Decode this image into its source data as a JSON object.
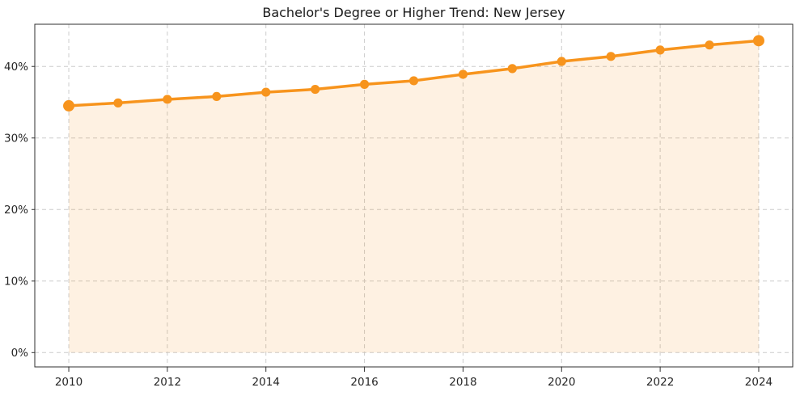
{
  "figure": {
    "title": "Bachelor's Degree or Higher Trend: New Jersey"
  },
  "chart_data": {
    "type": "line",
    "title": "Bachelor's Degree or Higher Trend: New Jersey",
    "x": [
      2010,
      2011,
      2012,
      2013,
      2014,
      2015,
      2016,
      2017,
      2018,
      2019,
      2020,
      2021,
      2022,
      2023,
      2024
    ],
    "values": [
      34.5,
      34.9,
      35.4,
      35.8,
      36.4,
      36.8,
      37.5,
      38.0,
      38.9,
      39.7,
      40.7,
      41.4,
      42.3,
      43.0,
      43.6
    ],
    "unit": "%",
    "xlabel": "",
    "ylabel": "",
    "x_ticks": [
      {
        "value": 2010,
        "label": "2010"
      },
      {
        "value": 2012,
        "label": "2012"
      },
      {
        "value": 2014,
        "label": "2014"
      },
      {
        "value": 2016,
        "label": "2016"
      },
      {
        "value": 2018,
        "label": "2018"
      },
      {
        "value": 2020,
        "label": "2020"
      },
      {
        "value": 2022,
        "label": "2022"
      },
      {
        "value": 2024,
        "label": "2024"
      }
    ],
    "y_ticks": [
      {
        "value": 0,
        "label": "0%"
      },
      {
        "value": 10,
        "label": "10%"
      },
      {
        "value": 20,
        "label": "20%"
      },
      {
        "value": 30,
        "label": "30%"
      },
      {
        "value": 40,
        "label": "40%"
      }
    ],
    "xlim": [
      2009.31,
      2024.69
    ],
    "ylim": [
      -2.0,
      45.9
    ],
    "grid": true,
    "grid_style": "dashed",
    "legend": "none",
    "area_fill": true,
    "marker": "circle",
    "colors": {
      "line": "#f7941d",
      "marker": "#f7941d",
      "area_fill": "rgba(247,148,29,0.13)",
      "grid": "#cccccc",
      "spine": "#2f2f2f",
      "text": "#262626"
    }
  }
}
